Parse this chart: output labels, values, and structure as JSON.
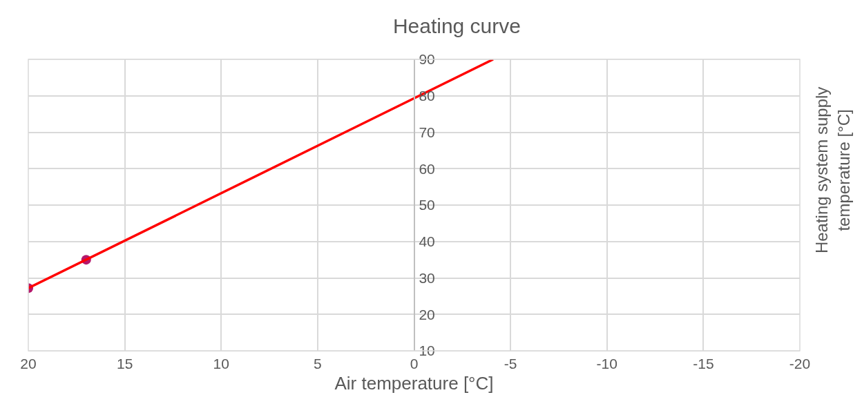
{
  "chart_data": {
    "type": "line",
    "title": "Heating curve",
    "xlabel": "Air temperature [°C]",
    "ylabel": "Heating system supply temperature [°C]",
    "series": [
      {
        "color": "#ff0000",
        "x": [
          20,
          -4.1
        ],
        "values": [
          27.2,
          90
        ],
        "marker": "none"
      },
      {
        "type": "scatter",
        "color": "#b5176b",
        "x": [
          20,
          17
        ],
        "values": [
          27.2,
          35
        ],
        "marker": "circle"
      }
    ],
    "xlim": [
      20,
      -20
    ],
    "xticks": [
      20,
      15,
      10,
      5,
      0,
      -5,
      -10,
      -15,
      -20
    ],
    "ylim": [
      10,
      90
    ],
    "yticks": [
      10,
      20,
      30,
      40,
      50,
      60,
      70,
      80,
      90
    ],
    "grid": true,
    "legend": false
  }
}
